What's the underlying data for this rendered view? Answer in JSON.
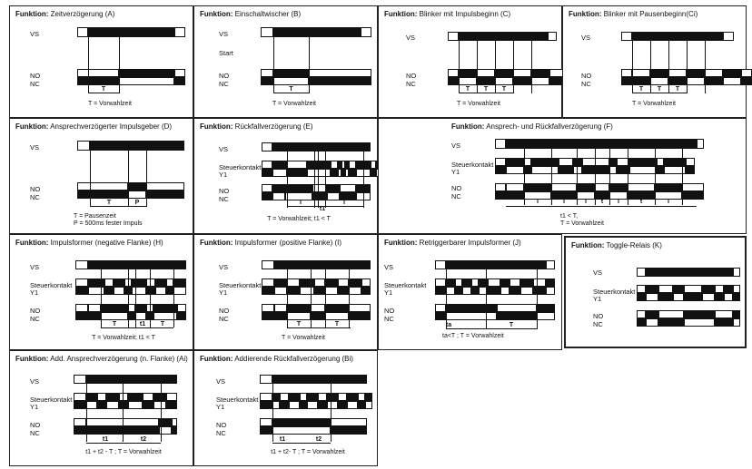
{
  "prefix": "Funktion:",
  "signals": {
    "vs": "VS",
    "start": "Start",
    "no": "NO",
    "nc": "NC",
    "steuer1": "Steuerkontakt",
    "steuer2": "Y1"
  },
  "panels": {
    "A": {
      "title": "Zeitverzögerung (A)",
      "tl": [
        "T"
      ],
      "caption": "T = Vorwahlzeit"
    },
    "B": {
      "title": "Einschaltwischer (B)",
      "tl": [
        "T"
      ],
      "caption": "T = Vorwahlzeit"
    },
    "C": {
      "title": " Blinker mit Impulsbeginn (C)",
      "tl": [
        "T",
        "T",
        "T"
      ],
      "caption": "T = Vorwahlzeit"
    },
    "Ci": {
      "title": " Blinker mit Pausenbeginn(Ci)",
      "tl": [
        "T",
        "T",
        "T"
      ],
      "caption": "T = Vorwahlzeit"
    },
    "D": {
      "title": "Ansprechverzögerter Impulsgeber (D)",
      "tl": [
        "T",
        "P"
      ],
      "caption": "T = Pausenzeit\nP = 500ms fester Impuls"
    },
    "E": {
      "title": "Rückfallverzögerung (E)",
      "tl": [
        "T",
        "T",
        "t1"
      ],
      "caption": "T = Vorwahlzeit; t1 < T"
    },
    "F": {
      "title": "Ansprech- und Rückfallverzögerung (F)",
      "tl": [
        "T",
        "T",
        "T",
        "t",
        "T",
        "t",
        "T"
      ],
      "caption": "t1 < T,\nT = Vorwahlzeit"
    },
    "H": {
      "title": "Impulsformer (negative Flanke) (H)",
      "tl": [
        "T",
        "t1",
        "T"
      ],
      "caption": "T = Vorwahlzeit; t1 < T"
    },
    "I": {
      "title": "Impulsformer (positive Flanke) (I)",
      "tl": [
        "T",
        "T"
      ],
      "caption": "T = Vorwahlzeit"
    },
    "J": {
      "title": " Retriggerbarer Impulsformer (J)",
      "tl": [
        "ta",
        "T"
      ],
      "caption": "ta<T ; T = Vorwahlzeit"
    },
    "K": {
      "title": "Toggle-Relais (K)",
      "tl": [],
      "caption": ""
    },
    "Ai": {
      "title": "Add. Ansprechverzögerung (n. Flanke) (Ai)",
      "tl": [
        "t1",
        "t2"
      ],
      "caption": "t1 + t2 - T ; T = Vorwahlzeit"
    },
    "Bi": {
      "title": "Addierende Rückfallverzögerung (Bi)",
      "tl": [
        "t1",
        "t2"
      ],
      "caption": "t1 + t2- T ; T = Vorwahlzeit"
    }
  }
}
